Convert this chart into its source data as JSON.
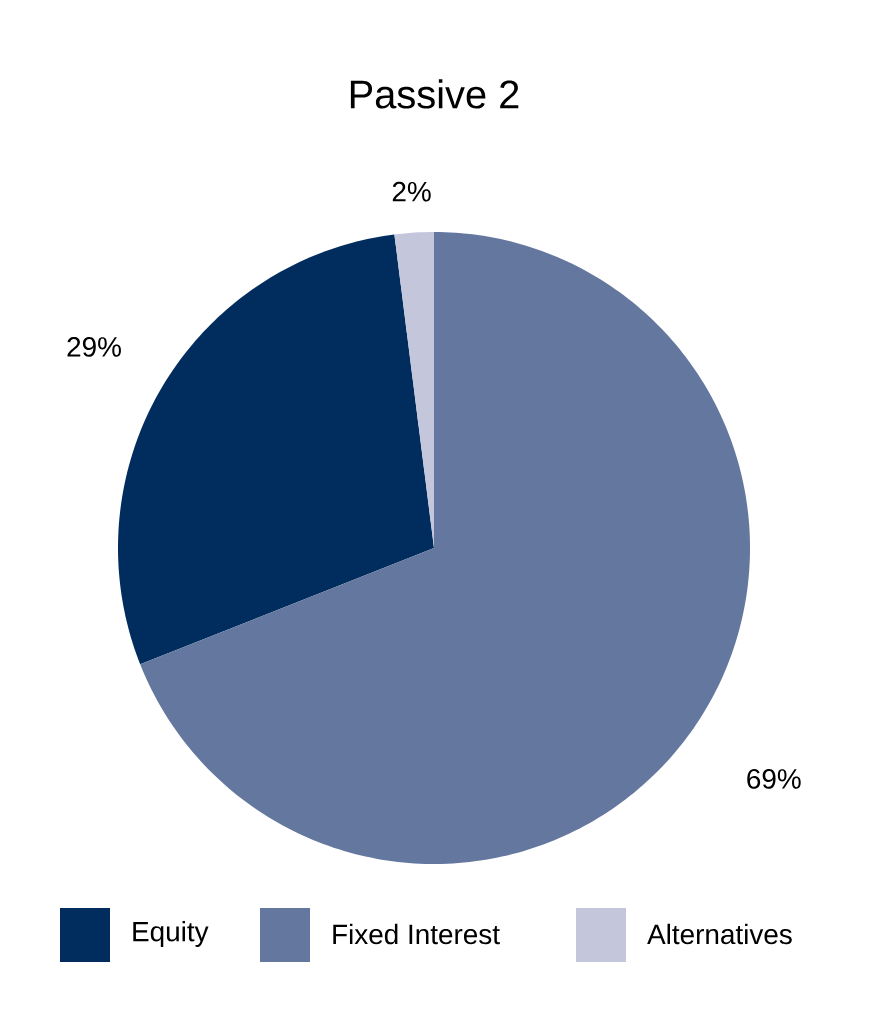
{
  "chart_data": {
    "type": "pie",
    "title": "Passive 2",
    "categories": [
      "Equity",
      "Fixed Interest",
      "Alternatives"
    ],
    "values": [
      29,
      69,
      2
    ],
    "colors": [
      "#002d5e",
      "#64779f",
      "#c4c6dc"
    ],
    "value_labels": [
      "29%",
      "69%",
      "2%"
    ],
    "legend": "bottom"
  }
}
